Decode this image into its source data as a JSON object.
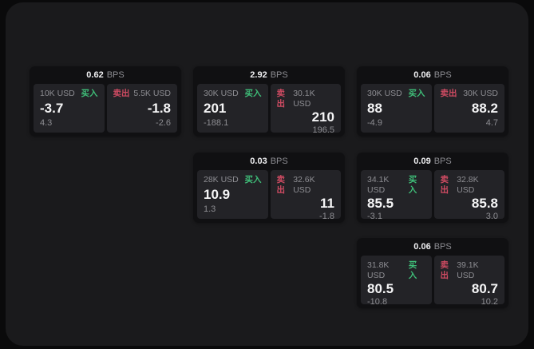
{
  "labels": {
    "bps_unit": "BPS",
    "buy": "买入",
    "sell": "卖出"
  },
  "colors": {
    "page_bg": "#0a0a0b",
    "panel": "#1a1a1c",
    "card": "#101012",
    "tile": "#232327",
    "buy": "#3fbf79",
    "sell": "#cf4b62",
    "muted_text": "#8d8d92",
    "value_text": "#f5f5f6"
  },
  "cards": [
    {
      "bps": "0.62",
      "buy": {
        "size": "10K USD",
        "price": "-3.7",
        "change": "4.3"
      },
      "sell": {
        "size": "5.5K USD",
        "price": "-1.8",
        "change": "-2.6"
      }
    },
    {
      "bps": "2.92",
      "buy": {
        "size": "30K USD",
        "price": "201",
        "change": "-188.1"
      },
      "sell": {
        "size": "30.1K USD",
        "price": "210",
        "change": "196.5"
      }
    },
    {
      "bps": "0.06",
      "buy": {
        "size": "30K USD",
        "price": "88",
        "change": "-4.9"
      },
      "sell": {
        "size": "30K USD",
        "price": "88.2",
        "change": "4.7"
      }
    },
    {
      "bps": "0.03",
      "buy": {
        "size": "28K USD",
        "price": "10.9",
        "change": "1.3"
      },
      "sell": {
        "size": "32.6K USD",
        "price": "11",
        "change": "-1.8"
      }
    },
    {
      "bps": "0.09",
      "buy": {
        "size": "34.1K USD",
        "price": "85.5",
        "change": "-3.1"
      },
      "sell": {
        "size": "32.8K USD",
        "price": "85.8",
        "change": "3.0"
      }
    },
    {
      "bps": "0.06",
      "buy": {
        "size": "31.8K USD",
        "price": "80.5",
        "change": "-10.8"
      },
      "sell": {
        "size": "39.1K USD",
        "price": "80.7",
        "change": "10.2"
      }
    }
  ]
}
